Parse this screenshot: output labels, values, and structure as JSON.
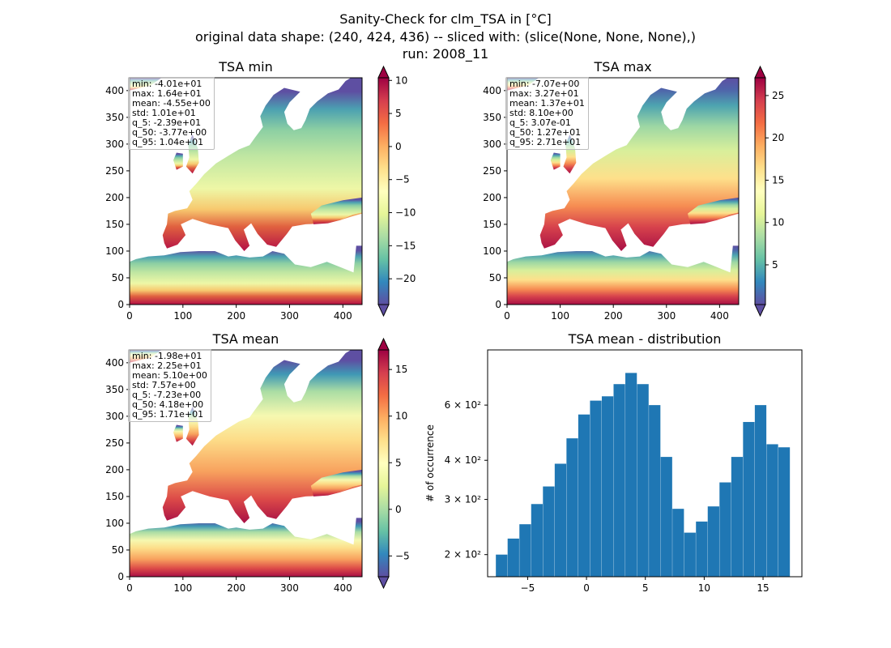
{
  "figure": {
    "title_line1": "Sanity-Check for clm_TSA in [°C]",
    "title_line2": "original data shape: (240, 424, 436) -- sliced with: (slice(None, None, None),)",
    "title_line3": "run: 2008_11"
  },
  "chart_data": [
    {
      "type": "heatmap",
      "title": "TSA min",
      "xlim": [
        0,
        436
      ],
      "ylim": [
        0,
        424
      ],
      "xticks": [
        "0",
        "100",
        "200",
        "300",
        "400"
      ],
      "yticks": [
        "0",
        "50",
        "100",
        "150",
        "200",
        "250",
        "300",
        "350",
        "400"
      ],
      "colormap": "Spectral_r",
      "colorbar": {
        "range": [
          -23.9,
          10.4
        ],
        "ticks": [
          "10",
          "5",
          "0",
          "−5",
          "−10",
          "−15",
          "−20"
        ],
        "tick_values": [
          10,
          5,
          0,
          -5,
          -10,
          -15,
          -20
        ]
      },
      "stats": [
        "min: -4.01e+01",
        "max: 1.64e+01",
        "mean: -4.55e+00",
        "std: 1.01e+01",
        "q_5: -2.39e+01",
        "q_50: -3.77e+00",
        "q_95: 1.04e+01"
      ]
    },
    {
      "type": "heatmap",
      "title": "TSA max",
      "xlim": [
        0,
        436
      ],
      "ylim": [
        0,
        424
      ],
      "xticks": [
        "0",
        "100",
        "200",
        "300",
        "400"
      ],
      "yticks": [
        "0",
        "50",
        "100",
        "150",
        "200",
        "250",
        "300",
        "350",
        "400"
      ],
      "colormap": "Spectral_r",
      "colorbar": {
        "range": [
          0.307,
          27.1
        ],
        "ticks": [
          "25",
          "20",
          "15",
          "10",
          "5"
        ],
        "tick_values": [
          25,
          20,
          15,
          10,
          5
        ]
      },
      "stats": [
        "min: -7.07e+00",
        "max: 3.27e+01",
        "mean: 1.37e+01",
        "std: 8.10e+00",
        "q_5: 3.07e-01",
        "q_50: 1.27e+01",
        "q_95: 2.71e+01"
      ]
    },
    {
      "type": "heatmap",
      "title": "TSA mean",
      "xlim": [
        0,
        436
      ],
      "ylim": [
        0,
        424
      ],
      "xticks": [
        "0",
        "100",
        "200",
        "300",
        "400"
      ],
      "yticks": [
        "0",
        "50",
        "100",
        "150",
        "200",
        "250",
        "300",
        "350",
        "400"
      ],
      "colormap": "Spectral_r",
      "colorbar": {
        "range": [
          -7.23,
          17.1
        ],
        "ticks": [
          "15",
          "10",
          "5",
          "0",
          "−5"
        ],
        "tick_values": [
          15,
          10,
          5,
          0,
          -5
        ]
      },
      "stats": [
        "min: -1.98e+01",
        "max: 2.25e+01",
        "mean: 5.10e+00",
        "std: 7.57e+00",
        "q_5: -7.23e+00",
        "q_50: 4.18e+00",
        "q_95: 1.71e+01"
      ]
    },
    {
      "type": "bar",
      "title": "TSA mean - distribution",
      "ylabel": "# of occurrence",
      "yscale": "log",
      "xlim": [
        -8.4,
        18.3
      ],
      "ylim": [
        170,
        900
      ],
      "xticks": [
        "−5",
        "0",
        "5",
        "10",
        "15"
      ],
      "xtick_values": [
        -5,
        0,
        5,
        10,
        15
      ],
      "ytick_values": [
        200,
        300,
        400,
        600
      ],
      "yticks": [
        "2 × 10²",
        "3 × 10²",
        "4 × 10²",
        "6 × 10²"
      ],
      "bar_color": "#1f77b4",
      "x": [
        -7.2,
        -6.2,
        -5.2,
        -4.2,
        -3.2,
        -2.2,
        -1.2,
        -0.2,
        0.8,
        1.8,
        2.8,
        3.8,
        4.8,
        5.8,
        6.8,
        7.8,
        8.8,
        9.8,
        10.8,
        11.8,
        12.8,
        13.8,
        14.8,
        15.8,
        16.8
      ],
      "values": [
        200,
        225,
        250,
        290,
        330,
        390,
        470,
        560,
        620,
        640,
        700,
        760,
        700,
        600,
        410,
        280,
        235,
        255,
        285,
        340,
        410,
        530,
        600,
        450,
        440
      ]
    }
  ]
}
